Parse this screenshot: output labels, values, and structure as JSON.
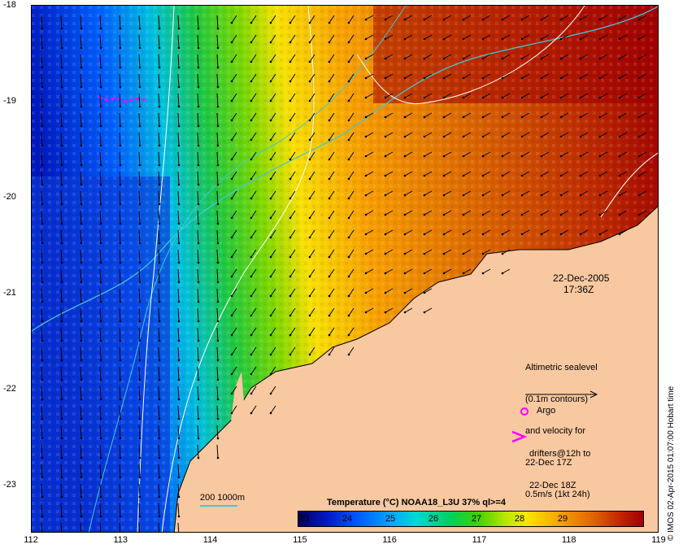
{
  "map": {
    "x_ticks": [
      "112",
      "113",
      "114",
      "115",
      "116",
      "117",
      "118",
      "119"
    ],
    "y_ticks": [
      "-18",
      "-19",
      "-20",
      "-21",
      "-22",
      "-23"
    ],
    "date": "22-Dec-2005",
    "time": "17:36Z",
    "legend": {
      "altimetry_lines": [
        "Altimetric sealevel",
        "(0.1m contours)",
        "and velocity for",
        "22-Dec 17Z",
        "0.5m/s (1kt 24h)"
      ],
      "argo_label": "Argo",
      "drifters_lines": [
        "drifters@12h to",
        "22-Dec 18Z"
      ]
    },
    "depth_scale_label": "200  1000m",
    "colorbar_title": "Temperature (°C) NOAA18_L3U 37% ql>=4",
    "colorbar_ticks": [
      "23",
      "24",
      "25",
      "26",
      "27",
      "28",
      "29"
    ],
    "credit": "© IMOS 02-Apr-2015 01:07:00 Hobart time",
    "colors": {
      "land": "#f8c8a0",
      "contour_isobath": "#40c8d8",
      "contour_sealevel": "#ffffff",
      "argo": "#ff00ff",
      "drifter": "#ff00ff"
    }
  }
}
